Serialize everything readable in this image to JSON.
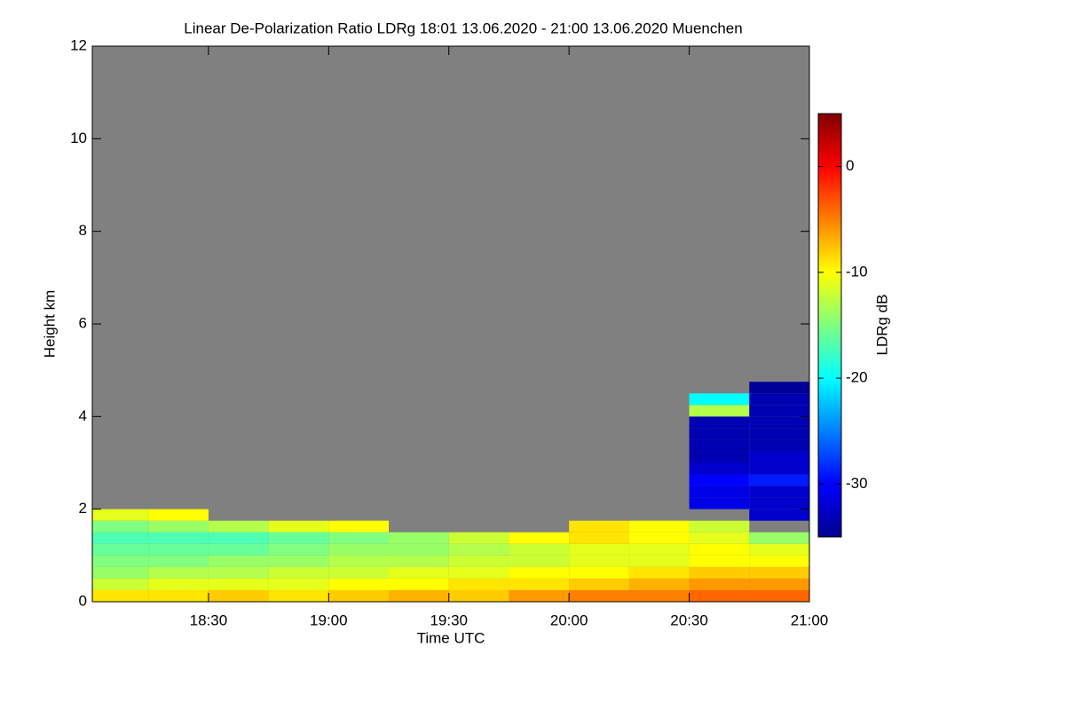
{
  "chart_data": {
    "type": "heatmap",
    "title": "Linear De-Polarization Ratio LDRg   18:01 13.06.2020 - 21:00 13.06.2020 Muenchen",
    "xlabel": "Time UTC",
    "ylabel": "Height km",
    "colorbar_label": "LDRg dB",
    "xlim": [
      1081,
      1260
    ],
    "xticks": [
      {
        "value": 1110,
        "label": "18:30"
      },
      {
        "value": 1140,
        "label": "19:00"
      },
      {
        "value": 1170,
        "label": "19:30"
      },
      {
        "value": 1200,
        "label": "20:00"
      },
      {
        "value": 1230,
        "label": "20:30"
      },
      {
        "value": 1260,
        "label": "21:00"
      }
    ],
    "ylim": [
      0,
      12
    ],
    "yticks": [
      0,
      2,
      4,
      6,
      8,
      10,
      12
    ],
    "clim": [
      -35,
      5
    ],
    "cticks": [
      0,
      -10,
      -20,
      -30
    ],
    "colormap": "jet",
    "missing_color": "#808080",
    "x_bins": [
      1081,
      1095,
      1110,
      1125,
      1140,
      1155,
      1170,
      1185,
      1200,
      1215,
      1230,
      1245,
      1260
    ],
    "y_bins": [
      0,
      0.25,
      0.5,
      0.75,
      1,
      1.25,
      1.5,
      1.75,
      2,
      2.25,
      2.5,
      2.75,
      3,
      3.25,
      3.5,
      3.75,
      4,
      4.25,
      4.5,
      4.75
    ],
    "z": [
      [
        -9,
        -9,
        -8,
        -9,
        -8,
        -7,
        -8,
        -6,
        -5,
        -5,
        -4,
        -4
      ],
      [
        -12,
        -11,
        -11,
        -11,
        -10,
        -10,
        -9,
        -9,
        -8,
        -7,
        -6,
        -6
      ],
      [
        -14,
        -13,
        -13,
        -12,
        -12,
        -11,
        -11,
        -10,
        -10,
        -9,
        -8,
        -8
      ],
      [
        -15,
        -15,
        -14,
        -14,
        -13,
        -13,
        -12,
        -12,
        -11,
        -11,
        -10,
        -10
      ],
      [
        -16,
        -16,
        -16,
        -15,
        -14,
        -14,
        -13,
        -12,
        -11,
        -11,
        -10,
        -11
      ],
      [
        -17,
        -17,
        -17,
        -16,
        -15,
        -14,
        -12,
        -10,
        -9,
        -10,
        -11,
        -14
      ],
      [
        -15,
        -14,
        -13,
        -11,
        -10,
        null,
        null,
        null,
        -9,
        -10,
        -12,
        null
      ],
      [
        -11,
        -10,
        null,
        null,
        null,
        null,
        null,
        null,
        null,
        null,
        null,
        -32
      ],
      [
        null,
        null,
        null,
        null,
        null,
        null,
        null,
        null,
        null,
        null,
        -31,
        -32
      ],
      [
        null,
        null,
        null,
        null,
        null,
        null,
        null,
        null,
        null,
        null,
        -31,
        -32
      ],
      [
        null,
        null,
        null,
        null,
        null,
        null,
        null,
        null,
        null,
        null,
        -30,
        -29
      ],
      [
        null,
        null,
        null,
        null,
        null,
        null,
        null,
        null,
        null,
        null,
        -32,
        -32
      ],
      [
        null,
        null,
        null,
        null,
        null,
        null,
        null,
        null,
        null,
        null,
        -33,
        -32
      ],
      [
        null,
        null,
        null,
        null,
        null,
        null,
        null,
        null,
        null,
        null,
        -33,
        -33
      ],
      [
        null,
        null,
        null,
        null,
        null,
        null,
        null,
        null,
        null,
        null,
        -33,
        -33
      ],
      [
        null,
        null,
        null,
        null,
        null,
        null,
        null,
        null,
        null,
        null,
        -33,
        -33
      ],
      [
        null,
        null,
        null,
        null,
        null,
        null,
        null,
        null,
        null,
        null,
        -13,
        -33
      ],
      [
        null,
        null,
        null,
        null,
        null,
        null,
        null,
        null,
        null,
        null,
        -20,
        -33
      ],
      [
        null,
        null,
        null,
        null,
        null,
        null,
        null,
        null,
        null,
        null,
        null,
        -34
      ]
    ]
  }
}
